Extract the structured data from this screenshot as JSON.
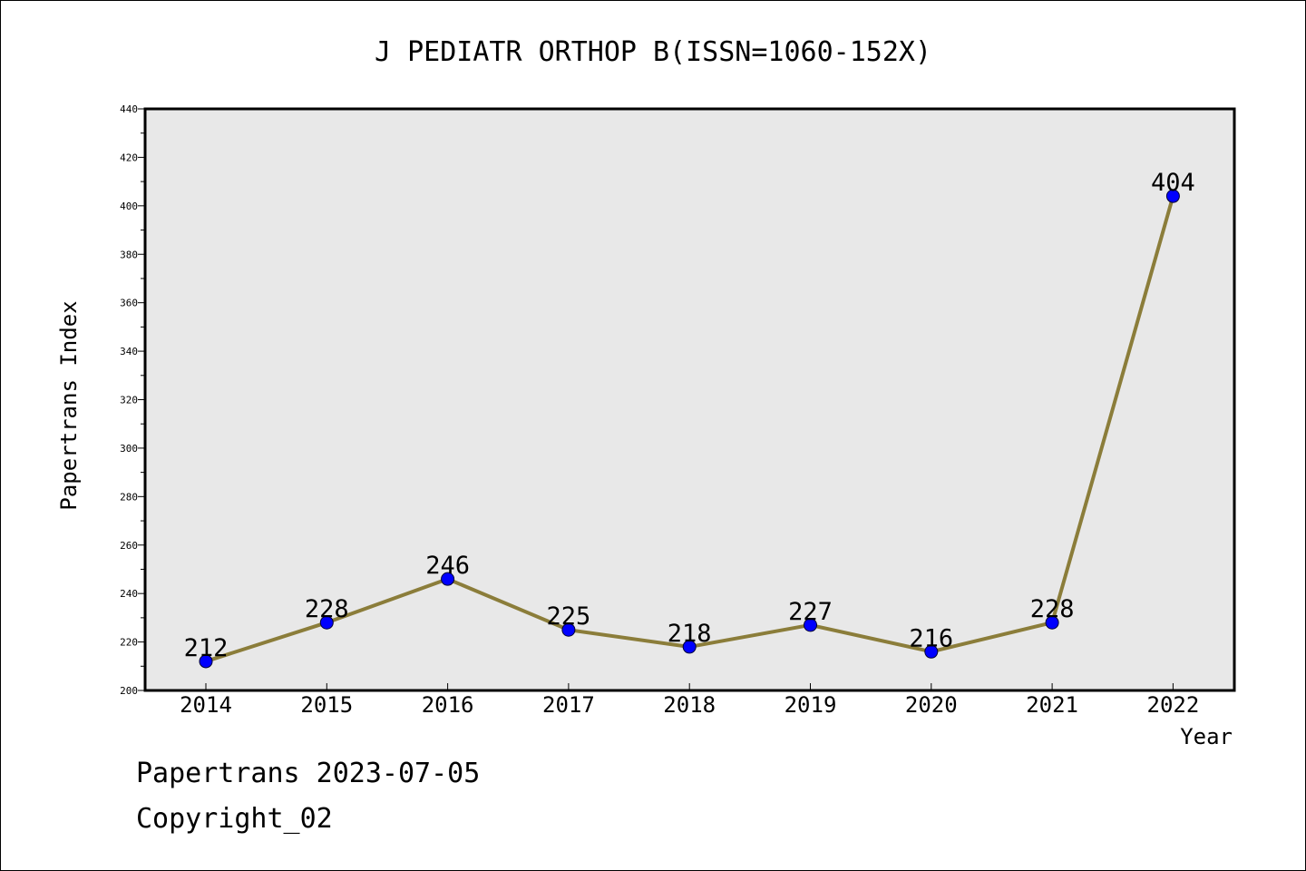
{
  "chart_data": {
    "type": "line",
    "title": "J PEDIATR ORTHOP B(ISSN=1060-152X)",
    "xlabel": "Year",
    "ylabel": "Papertrans Index",
    "categories": [
      "2014",
      "2015",
      "2016",
      "2017",
      "2018",
      "2019",
      "2020",
      "2021",
      "2022"
    ],
    "values": [
      212,
      228,
      246,
      225,
      218,
      227,
      216,
      228,
      404
    ],
    "ylim": [
      200,
      440
    ],
    "yticks": [
      200,
      220,
      240,
      260,
      280,
      300,
      320,
      340,
      360,
      380,
      400,
      420,
      440
    ],
    "grid": false,
    "line_color": "#8b7d3a",
    "marker_color": "#0000ff",
    "plot_background": "#e8e8e8"
  },
  "footer": {
    "line1": "Papertrans 2023-07-05",
    "line2": "Copyright_02"
  }
}
